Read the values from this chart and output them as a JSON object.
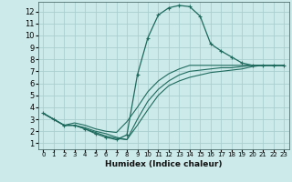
{
  "title": "",
  "xlabel": "Humidex (Indice chaleur)",
  "ylabel": "",
  "xlim": [
    -0.5,
    23.5
  ],
  "ylim": [
    0.5,
    12.8
  ],
  "xticks": [
    0,
    1,
    2,
    3,
    4,
    5,
    6,
    7,
    8,
    9,
    10,
    11,
    12,
    13,
    14,
    15,
    16,
    17,
    18,
    19,
    20,
    21,
    22,
    23
  ],
  "yticks": [
    1,
    2,
    3,
    4,
    5,
    6,
    7,
    8,
    9,
    10,
    11,
    12
  ],
  "background_color": "#cdeaea",
  "grid_color": "#aacece",
  "line_color": "#1e6b5e",
  "curves": [
    {
      "x": [
        0,
        1,
        2,
        3,
        4,
        5,
        6,
        7,
        8,
        9,
        10,
        11,
        12,
        13,
        14,
        15,
        16,
        17,
        18,
        19,
        20,
        21,
        22,
        23
      ],
      "y": [
        3.5,
        3.0,
        2.5,
        2.5,
        2.2,
        1.8,
        1.5,
        1.3,
        1.7,
        6.7,
        9.8,
        11.7,
        12.3,
        12.5,
        12.4,
        11.6,
        9.3,
        8.7,
        8.2,
        7.7,
        7.5,
        7.5,
        7.5,
        7.5
      ],
      "marker": true
    },
    {
      "x": [
        0,
        1,
        2,
        3,
        4,
        5,
        6,
        7,
        8,
        9,
        10,
        11,
        12,
        13,
        14,
        15,
        16,
        17,
        18,
        19,
        20,
        21,
        22,
        23
      ],
      "y": [
        3.5,
        3.0,
        2.5,
        2.7,
        2.5,
        2.2,
        2.0,
        1.9,
        2.8,
        4.0,
        5.3,
        6.2,
        6.8,
        7.2,
        7.5,
        7.5,
        7.5,
        7.5,
        7.5,
        7.5,
        7.5,
        7.5,
        7.5,
        7.5
      ],
      "marker": false
    },
    {
      "x": [
        0,
        1,
        2,
        3,
        4,
        5,
        6,
        7,
        8,
        9,
        10,
        11,
        12,
        13,
        14,
        15,
        16,
        17,
        18,
        19,
        20,
        21,
        22,
        23
      ],
      "y": [
        3.5,
        3.0,
        2.5,
        2.5,
        2.3,
        2.0,
        1.8,
        1.5,
        1.3,
        3.0,
        4.5,
        5.5,
        6.2,
        6.7,
        7.0,
        7.1,
        7.2,
        7.3,
        7.3,
        7.4,
        7.5,
        7.5,
        7.5,
        7.5
      ],
      "marker": false
    },
    {
      "x": [
        0,
        1,
        2,
        3,
        4,
        5,
        6,
        7,
        8,
        9,
        10,
        11,
        12,
        13,
        14,
        15,
        16,
        17,
        18,
        19,
        20,
        21,
        22,
        23
      ],
      "y": [
        3.5,
        3.0,
        2.5,
        2.5,
        2.2,
        1.9,
        1.6,
        1.4,
        1.3,
        2.5,
        3.8,
        5.0,
        5.8,
        6.2,
        6.5,
        6.7,
        6.9,
        7.0,
        7.1,
        7.2,
        7.4,
        7.5,
        7.5,
        7.5
      ],
      "marker": false
    }
  ]
}
